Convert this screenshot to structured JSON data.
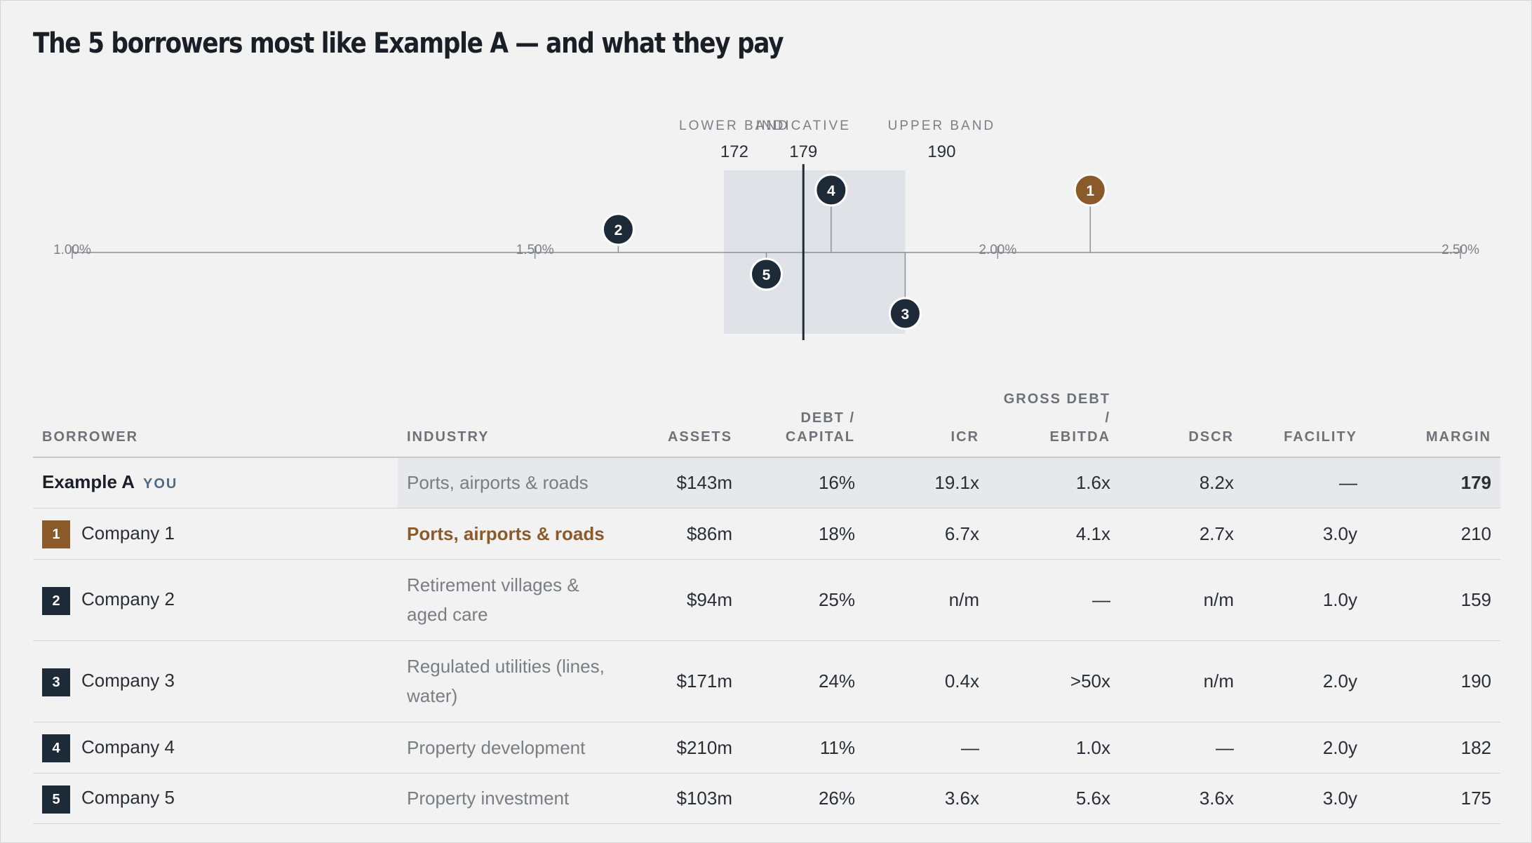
{
  "title": "The 5 borrowers most like Example A — and what they pay",
  "chart_data": {
    "type": "scatter",
    "xlim": [
      1.0,
      2.5
    ],
    "x_ticks": [
      "1.00%",
      "1.50%",
      "2.00%",
      "2.50%"
    ],
    "band": {
      "lower_label": "LOWER BAND",
      "lower": 172,
      "indicative_label": "INDICATIVE",
      "indicative": 179,
      "upper_label": "UPPER BAND",
      "upper": 190
    },
    "points": [
      {
        "label": "1",
        "margin_bps": 210,
        "side": "above",
        "color": "#8a5a2b"
      },
      {
        "label": "2",
        "margin_bps": 159,
        "side": "above",
        "color": "#1d2a38"
      },
      {
        "label": "3",
        "margin_bps": 190,
        "side": "below",
        "color": "#1d2a38"
      },
      {
        "label": "4",
        "margin_bps": 182,
        "side": "above",
        "color": "#1d2a38"
      },
      {
        "label": "5",
        "margin_bps": 175,
        "side": "below",
        "color": "#1d2a38"
      }
    ]
  },
  "table": {
    "headers": {
      "borrower": "BORROWER",
      "industry": "INDUSTRY",
      "assets": "ASSETS",
      "debt_capital_1": "DEBT /",
      "debt_capital_2": "CAPITAL",
      "icr": "ICR",
      "gross_debt_1": "GROSS DEBT /",
      "gross_debt_2": "EBITDA",
      "dscr": "DSCR",
      "facility": "FACILITY",
      "margin": "MARGIN"
    },
    "you_row": {
      "name": "Example A",
      "tag": "YOU",
      "industry": "Ports, airports & roads",
      "assets": "$143m",
      "debt_capital": "16%",
      "icr": "19.1x",
      "gross_debt": "1.6x",
      "dscr": "8.2x",
      "facility": "—",
      "margin": "179"
    },
    "rows": [
      {
        "num": "1",
        "name": "Company 1",
        "industry": "Ports, airports & roads",
        "assets": "$86m",
        "debt_capital": "18%",
        "icr": "6.7x",
        "gross_debt": "4.1x",
        "dscr": "2.7x",
        "facility": "3.0y",
        "margin": "210"
      },
      {
        "num": "2",
        "name": "Company 2",
        "industry": "Retirement villages & aged care",
        "assets": "$94m",
        "debt_capital": "25%",
        "icr": "n/m",
        "gross_debt": "—",
        "dscr": "n/m",
        "facility": "1.0y",
        "margin": "159"
      },
      {
        "num": "3",
        "name": "Company 3",
        "industry": "Regulated utilities (lines, water)",
        "assets": "$171m",
        "debt_capital": "24%",
        "icr": "0.4x",
        "gross_debt": ">50x",
        "dscr": "n/m",
        "facility": "2.0y",
        "margin": "190"
      },
      {
        "num": "4",
        "name": "Company 4",
        "industry": "Property development",
        "assets": "$210m",
        "debt_capital": "11%",
        "icr": "—",
        "gross_debt": "1.0x",
        "dscr": "—",
        "facility": "2.0y",
        "margin": "182"
      },
      {
        "num": "5",
        "name": "Company 5",
        "industry": "Property investment",
        "assets": "$103m",
        "debt_capital": "26%",
        "icr": "3.6x",
        "gross_debt": "5.6x",
        "dscr": "3.6x",
        "facility": "3.0y",
        "margin": "175"
      }
    ]
  }
}
